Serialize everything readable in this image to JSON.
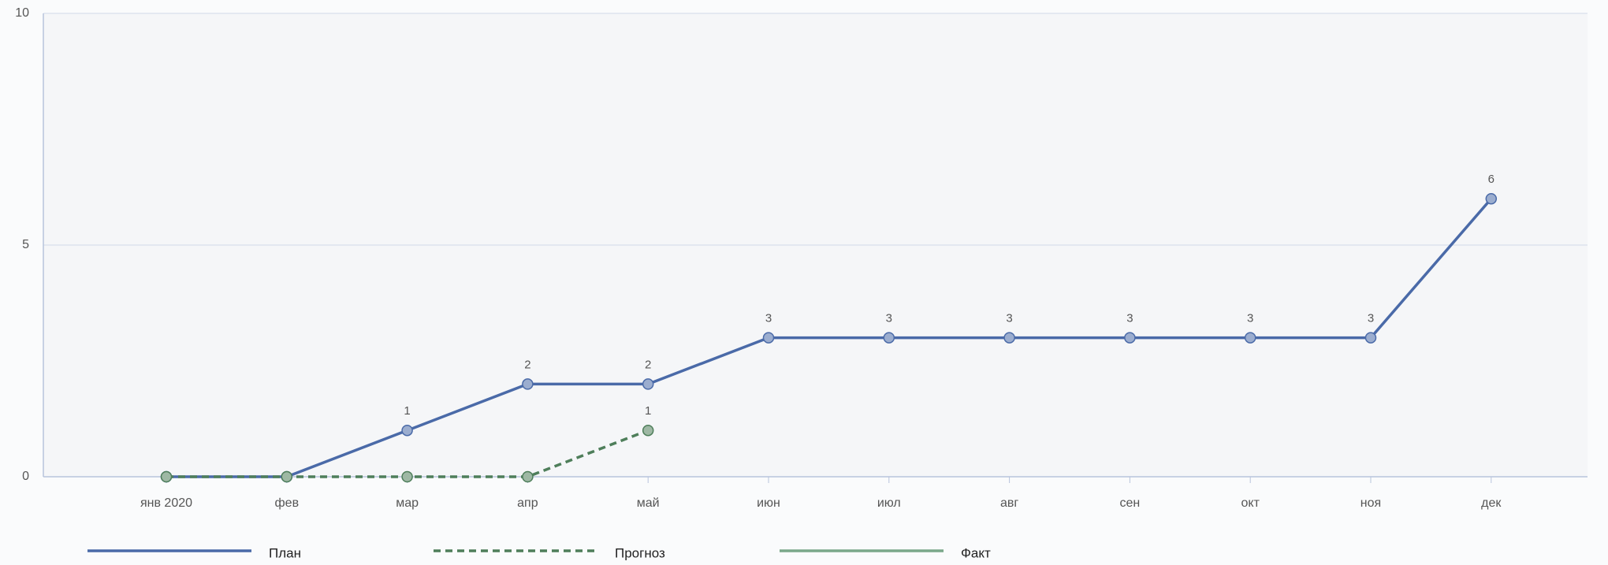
{
  "chart_data": {
    "type": "line",
    "categories": [
      "янв 2020",
      "фев",
      "мар",
      "апр",
      "май",
      "июн",
      "июл",
      "авг",
      "сен",
      "окт",
      "ноя",
      "дек"
    ],
    "series": [
      {
        "name": "План",
        "color": "#4a6aa8",
        "line_style": "solid",
        "values": [
          0,
          0,
          1,
          2,
          2,
          3,
          3,
          3,
          3,
          3,
          3,
          6
        ]
      },
      {
        "name": "Прогноз",
        "color": "#4e7e5a",
        "line_style": "dashed",
        "values": [
          0,
          0,
          0,
          0,
          1,
          null,
          null,
          null,
          null,
          null,
          null,
          null
        ]
      },
      {
        "name": "Факт",
        "color": "#7aa88a",
        "line_style": "solid",
        "values": [
          null,
          null,
          null,
          null,
          null,
          null,
          null,
          null,
          null,
          null,
          null,
          null
        ]
      }
    ],
    "ylim": [
      0,
      10
    ],
    "yticks": [
      0,
      5,
      10
    ],
    "grid": true
  }
}
